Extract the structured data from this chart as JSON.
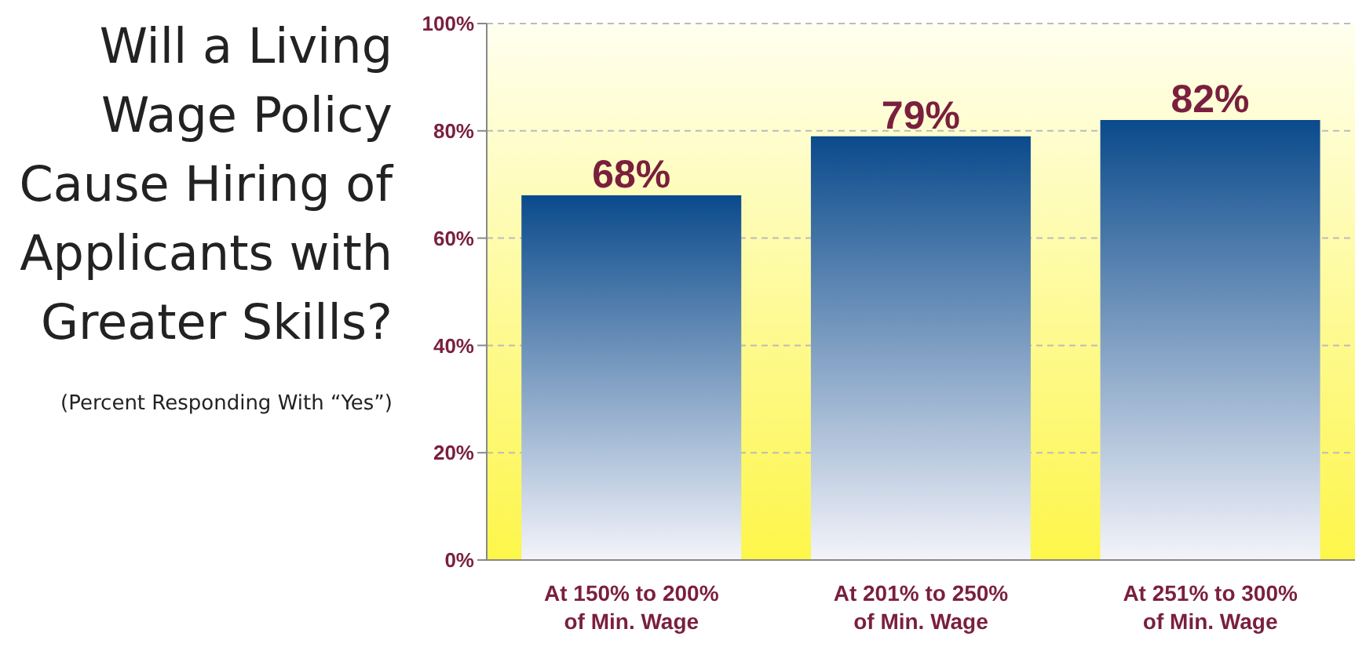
{
  "chart_data": {
    "type": "bar",
    "title": "Will a Living Wage Policy Cause Hiring of Applicants with Greater Skills?",
    "subtitle": "(Percent Responding With “Yes”)",
    "categories": [
      "At 150% to 200%\nof Min. Wage",
      "At 201% to 250%\nof Min. Wage",
      "At 251% to 300%\nof Min. Wage"
    ],
    "values": [
      68,
      79,
      82
    ],
    "color": "#0a4a8c",
    "value_labels": [
      "68%",
      "79%",
      "82%"
    ],
    "ylim": [
      0,
      100
    ],
    "yticks": [
      {
        "value": 0,
        "label": "0%"
      },
      {
        "value": 20,
        "label": "20%"
      },
      {
        "value": 40,
        "label": "40%"
      },
      {
        "value": 60,
        "label": "60%"
      },
      {
        "value": 80,
        "label": "80%"
      },
      {
        "value": 100,
        "label": "100%"
      }
    ],
    "grid": "y"
  }
}
